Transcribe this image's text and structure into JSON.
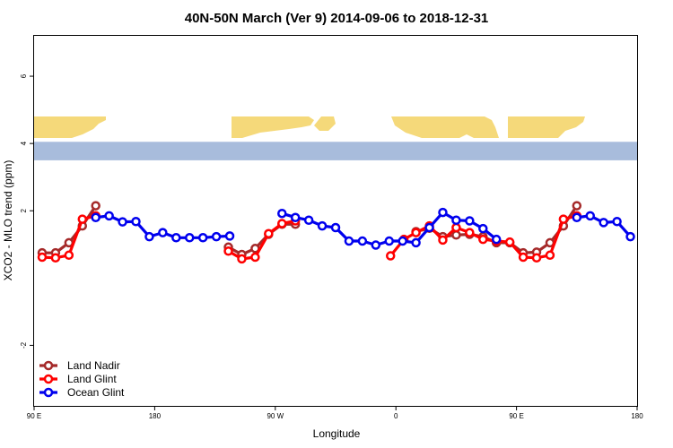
{
  "chart_data": {
    "type": "line",
    "title": "40N-50N March (Ver 9)   2014-09-06 to 2018-12-31",
    "xlabel": "Longitude",
    "ylabel": "XCO2 - MLO trend (ppm)",
    "xlim": [
      90,
      540
    ],
    "ylim": [
      -3.8,
      7.2
    ],
    "x_ticks": [
      {
        "value": 90,
        "label": "90 E"
      },
      {
        "value": 180,
        "label": "180"
      },
      {
        "value": 270,
        "label": "90 W"
      },
      {
        "value": 360,
        "label": "0"
      },
      {
        "value": 450,
        "label": "90 E"
      },
      {
        "value": 540,
        "label": "180"
      }
    ],
    "y_ticks": [
      {
        "value": -2,
        "label": "-2"
      },
      {
        "value": 2,
        "label": "2"
      },
      {
        "value": 4,
        "label": "4"
      },
      {
        "value": 6,
        "label": "6"
      }
    ],
    "legend_position": "bottom-left",
    "map_band": {
      "y_range": [
        3.5,
        4.05
      ],
      "ocean_color": "#a8bcdc",
      "land_color": "#f5d97a"
    },
    "series": [
      {
        "name": "Land Nadir",
        "color": "#a52a2a",
        "segments": [
          [
            [
              96,
              0.75
            ],
            [
              106,
              0.75
            ],
            [
              116,
              1.05
            ],
            [
              126,
              1.55
            ],
            [
              136,
              2.15
            ]
          ],
          [
            [
              235,
              0.92
            ],
            [
              245,
              0.7
            ],
            [
              255,
              0.88
            ],
            [
              265,
              1.3
            ],
            [
              275,
              1.6
            ],
            [
              285,
              1.6
            ]
          ],
          [
            [
              375,
              1.38
            ],
            [
              385,
              1.48
            ],
            [
              395,
              1.23
            ],
            [
              405,
              1.28
            ],
            [
              415,
              1.3
            ],
            [
              425,
              1.23
            ],
            [
              435,
              1.05
            ],
            [
              445,
              1.05
            ],
            [
              455,
              0.75
            ],
            [
              465,
              0.77
            ],
            [
              475,
              1.05
            ],
            [
              485,
              1.55
            ],
            [
              495,
              2.15
            ]
          ]
        ]
      },
      {
        "name": "Land Glint",
        "color": "#ff0000",
        "segments": [
          [
            [
              96,
              0.62
            ],
            [
              106,
              0.6
            ],
            [
              116,
              0.68
            ],
            [
              126,
              1.75
            ],
            [
              136,
              1.85
            ]
          ],
          [
            [
              235,
              0.8
            ],
            [
              245,
              0.57
            ],
            [
              255,
              0.62
            ],
            [
              265,
              1.32
            ],
            [
              275,
              1.62
            ],
            [
              285,
              1.7
            ]
          ],
          [
            [
              356,
              0.66
            ],
            [
              366,
              1.15
            ],
            [
              375,
              1.35
            ],
            [
              385,
              1.55
            ],
            [
              395,
              1.13
            ],
            [
              405,
              1.5
            ],
            [
              415,
              1.35
            ],
            [
              425,
              1.15
            ],
            [
              435,
              1.1
            ],
            [
              445,
              1.07
            ],
            [
              455,
              0.62
            ],
            [
              465,
              0.6
            ],
            [
              475,
              0.68
            ],
            [
              485,
              1.75
            ],
            [
              495,
              1.85
            ]
          ]
        ]
      },
      {
        "name": "Ocean Glint",
        "color": "#0000ee",
        "segments": [
          [
            [
              136,
              1.8
            ],
            [
              146,
              1.85
            ],
            [
              156,
              1.67
            ],
            [
              166,
              1.68
            ],
            [
              176,
              1.23
            ],
            [
              186,
              1.35
            ],
            [
              196,
              1.2
            ],
            [
              206,
              1.2
            ],
            [
              216,
              1.2
            ],
            [
              226,
              1.23
            ],
            [
              236,
              1.25
            ]
          ],
          [
            [
              275,
              1.92
            ],
            [
              285,
              1.8
            ],
            [
              295,
              1.72
            ],
            [
              305,
              1.55
            ],
            [
              315,
              1.5
            ],
            [
              325,
              1.1
            ],
            [
              335,
              1.1
            ],
            [
              345,
              0.98
            ],
            [
              355,
              1.1
            ],
            [
              365,
              1.1
            ],
            [
              375,
              1.05
            ],
            [
              385,
              1.5
            ],
            [
              395,
              1.95
            ],
            [
              405,
              1.72
            ],
            [
              415,
              1.7
            ],
            [
              425,
              1.47
            ],
            [
              435,
              1.15
            ]
          ],
          [
            [
              495,
              1.8
            ],
            [
              505,
              1.85
            ],
            [
              515,
              1.65
            ],
            [
              525,
              1.68
            ],
            [
              535,
              1.23
            ]
          ]
        ]
      }
    ]
  }
}
